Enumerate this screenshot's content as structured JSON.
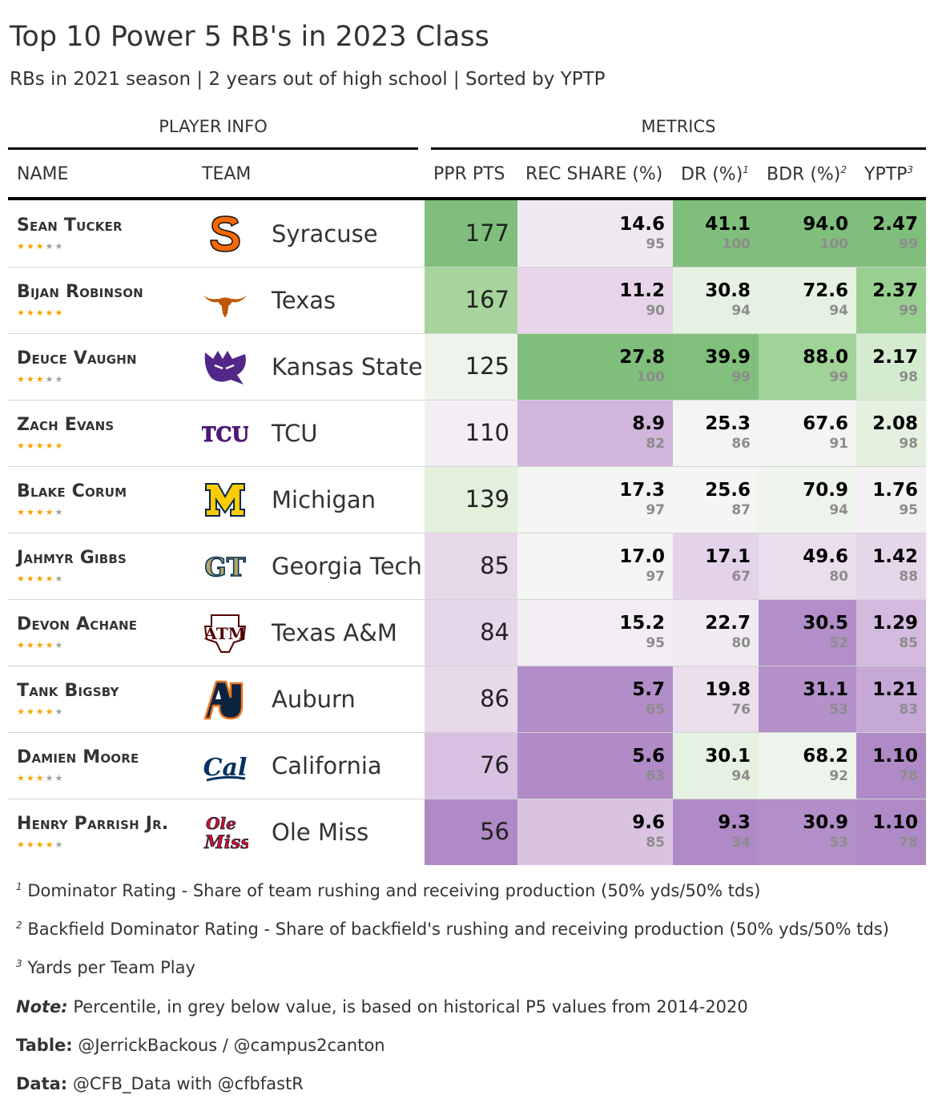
{
  "title": "Top 10 Power 5 RB's in 2023 Class",
  "subtitle": "RBs in 2021 season | 2 years out of high school | Sorted by YPTP",
  "spanners": {
    "player_info": "PLAYER INFO",
    "metrics": "METRICS"
  },
  "columns": {
    "name": "NAME",
    "team": "TEAM",
    "ppr": "PPR PTS",
    "rec": "REC SHARE (%)",
    "dr": "DR (%)",
    "dr_sup": "1",
    "bdr": "BDR (%)",
    "bdr_sup": "2",
    "yptp": "YPTP",
    "yptp_sup": "3"
  },
  "chart_data": {
    "type": "table",
    "title": "Top 10 Power 5 RB's in 2023 Class",
    "rows": [
      {
        "name": "Sean Tucker",
        "stars": 3,
        "team": "Syracuse",
        "logo": "syracuse-s-logo",
        "ppr": "177",
        "rec": "14.6",
        "rec_pct": "95",
        "dr": "41.1",
        "dr_pct": "100",
        "bdr": "94.0",
        "bdr_pct": "100",
        "yptp": "2.47",
        "yptp_pct": "99",
        "colors": {
          "ppr": "#7fbf7b",
          "rec": "#efe8f0",
          "dr": "#7fbf7b",
          "bdr": "#7fbf7b",
          "yptp": "#7fbf7b"
        }
      },
      {
        "name": "Bijan Robinson",
        "stars": 5,
        "team": "Texas",
        "logo": "texas-longhorn-logo",
        "ppr": "167",
        "rec": "11.2",
        "rec_pct": "90",
        "dr": "30.8",
        "dr_pct": "94",
        "bdr": "72.6",
        "bdr_pct": "94",
        "yptp": "2.37",
        "yptp_pct": "99",
        "colors": {
          "ppr": "#a6d49c",
          "rec": "#e7d4e8",
          "dr": "#e6f2e1",
          "bdr": "#e6f2e1",
          "yptp": "#99cf91"
        }
      },
      {
        "name": "Deuce Vaughn",
        "stars": 3,
        "team": "Kansas State",
        "logo": "kansas-state-wildcat-logo",
        "ppr": "125",
        "rec": "27.8",
        "rec_pct": "100",
        "dr": "39.9",
        "dr_pct": "99",
        "bdr": "88.0",
        "bdr_pct": "99",
        "yptp": "2.17",
        "yptp_pct": "98",
        "colors": {
          "ppr": "#eef4ec",
          "rec": "#7fbf7b",
          "dr": "#80c07c",
          "bdr": "#a1d298",
          "yptp": "#d5ebcf"
        }
      },
      {
        "name": "Zach Evans",
        "stars": 5,
        "team": "TCU",
        "logo": "tcu-logo",
        "ppr": "110",
        "rec": "8.9",
        "rec_pct": "82",
        "dr": "25.3",
        "dr_pct": "86",
        "bdr": "67.6",
        "bdr_pct": "91",
        "yptp": "2.08",
        "yptp_pct": "98",
        "colors": {
          "ppr": "#f3eef4",
          "rec": "#d1b5dc",
          "dr": "#f5f4f5",
          "bdr": "#f3f5f2",
          "yptp": "#e4f1df"
        }
      },
      {
        "name": "Blake Corum",
        "stars": 4,
        "team": "Michigan",
        "logo": "michigan-m-logo",
        "ppr": "139",
        "rec": "17.3",
        "rec_pct": "97",
        "dr": "25.6",
        "dr_pct": "87",
        "bdr": "70.9",
        "bdr_pct": "94",
        "yptp": "1.76",
        "yptp_pct": "95",
        "colors": {
          "ppr": "#e2f0dc",
          "rec": "#f2f5f1",
          "dr": "#f5f5f5",
          "bdr": "#eef4ec",
          "yptp": "#f3f1f4"
        }
      },
      {
        "name": "Jahmyr Gibbs",
        "stars": 4,
        "team": "Georgia Tech",
        "logo": "georgia-tech-gt-logo",
        "ppr": "85",
        "rec": "17.0",
        "rec_pct": "97",
        "dr": "17.1",
        "dr_pct": "67",
        "bdr": "49.6",
        "bdr_pct": "80",
        "yptp": "1.42",
        "yptp_pct": "88",
        "colors": {
          "ppr": "#e6d7e9",
          "rec": "#f3f5f2",
          "dr": "#e4d3e8",
          "bdr": "#eadeed",
          "yptp": "#e5d6e9"
        }
      },
      {
        "name": "Devon Achane",
        "stars": 4,
        "team": "Texas A&M",
        "logo": "texas-am-logo",
        "ppr": "84",
        "rec": "15.2",
        "rec_pct": "95",
        "dr": "22.7",
        "dr_pct": "80",
        "bdr": "30.5",
        "bdr_pct": "52",
        "yptp": "1.29",
        "yptp_pct": "85",
        "colors": {
          "ppr": "#e5d6e9",
          "rec": "#f1edf2",
          "dr": "#f0ebf1",
          "bdr": "#b28fc8",
          "yptp": "#d4bade"
        }
      },
      {
        "name": "Tank Bigsby",
        "stars": 4,
        "team": "Auburn",
        "logo": "auburn-au-logo",
        "ppr": "86",
        "rec": "5.7",
        "rec_pct": "65",
        "dr": "19.8",
        "dr_pct": "76",
        "bdr": "31.1",
        "bdr_pct": "53",
        "yptp": "1.21",
        "yptp_pct": "83",
        "colors": {
          "ppr": "#e7d9ea",
          "rec": "#b28ec8",
          "dr": "#ebdfed",
          "bdr": "#b491c9",
          "yptp": "#c6a8d7"
        }
      },
      {
        "name": "Damien Moore",
        "stars": 3,
        "team": "California",
        "logo": "california-cal-logo",
        "ppr": "76",
        "rec": "5.6",
        "rec_pct": "63",
        "dr": "30.1",
        "dr_pct": "94",
        "bdr": "68.2",
        "bdr_pct": "92",
        "yptp": "1.10",
        "yptp_pct": "78",
        "colors": {
          "ppr": "#d8c1e1",
          "rec": "#b08bc6",
          "dr": "#e6f2e1",
          "bdr": "#eef4ec",
          "yptp": "#af8ac6"
        }
      },
      {
        "name": "Henry Parrish Jr.",
        "stars": 4,
        "team": "Ole Miss",
        "logo": "ole-miss-logo",
        "ppr": "56",
        "rec": "9.6",
        "rec_pct": "85",
        "dr": "9.3",
        "dr_pct": "34",
        "bdr": "30.9",
        "bdr_pct": "53",
        "yptp": "1.10",
        "yptp_pct": "78",
        "colors": {
          "ppr": "#af8ac6",
          "rec": "#d9c3e1",
          "dr": "#af8ac6",
          "bdr": "#b28fc8",
          "yptp": "#af8ac6"
        }
      }
    ]
  },
  "footnotes": {
    "f1_mark": "1",
    "f1": "Dominator Rating - Share of team rushing and receiving production (50% yds/50% tds)",
    "f2_mark": "2",
    "f2": "Backfield Dominator Rating - Share of backfield's rushing and receiving production (50% yds/50% tds)",
    "f3_mark": "3",
    "f3": "Yards per Team Play",
    "note_label": "Note:",
    "note": "Percentile, in grey below value, is based on historical P5 values from 2014-2020",
    "table_label": "Table:",
    "table": "@JerrickBackous / @campus2canton",
    "data_label": "Data:",
    "data": "@CFB_Data with @cfbfastR"
  }
}
